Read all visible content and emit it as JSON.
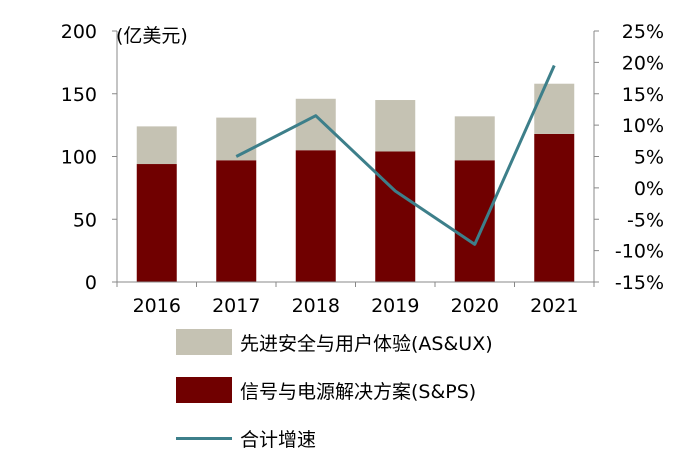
{
  "chart_data": {
    "type": "bar",
    "stacked": true,
    "categories": [
      "2016",
      "2017",
      "2018",
      "2019",
      "2020",
      "2021"
    ],
    "unit_label": "(亿美元)",
    "y_left": {
      "ticks": [
        "0",
        "50",
        "100",
        "150",
        "200"
      ],
      "lim": [
        0,
        200
      ]
    },
    "y_right": {
      "ticks": [
        "-15%",
        "-10%",
        "-5%",
        "0%",
        "5%",
        "10%",
        "15%",
        "20%",
        "25%"
      ],
      "lim": [
        -15,
        25
      ]
    },
    "series": [
      {
        "name": "信号与电源解决方案(S&PS)",
        "kind": "bar",
        "axis": "left",
        "color": "#700000",
        "values": [
          94,
          97,
          105,
          104,
          97,
          118
        ]
      },
      {
        "name": "先进安全与用户体验(AS&UX)",
        "kind": "bar",
        "axis": "left",
        "color": "#c5c2b3",
        "values": [
          30,
          34,
          41,
          41,
          35,
          40
        ]
      },
      {
        "name": "合计增速",
        "kind": "line",
        "axis": "right",
        "color": "#3d7f8a",
        "values": [
          null,
          5,
          11.5,
          -0.5,
          -9,
          19.5
        ]
      }
    ]
  },
  "legend": [
    {
      "label": "先进安全与用户体验(AS&UX)",
      "color": "#c5c2b3",
      "type": "box"
    },
    {
      "label": "信号与电源解决方案(S&PS)",
      "color": "#700000",
      "type": "box"
    },
    {
      "label": "合计增速",
      "color": "#3d7f8a",
      "type": "line"
    }
  ]
}
